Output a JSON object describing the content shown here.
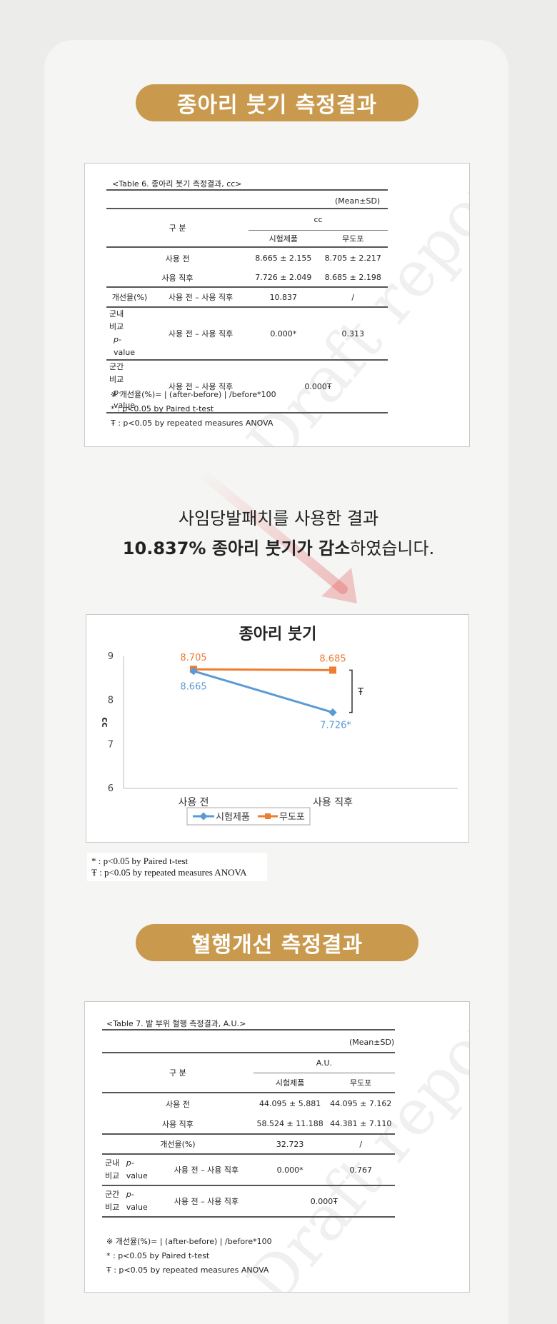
{
  "section1": {
    "title": "종아리 붓기 측정결과",
    "table": {
      "caption": "<Table 6. 종아리 붓기 측정결과, cc>",
      "unit_note": "(Mean±SD)",
      "group_header": "구 분",
      "unit_header": "cc",
      "col_test": "시험제품",
      "col_placebo": "무도포",
      "row_before": {
        "label": "사용 전",
        "test": "8.665  ±  2.155",
        "placebo": "8.705 ±  2.217"
      },
      "row_after": {
        "label": "사용 직후",
        "test": "7.726  ±  2.049",
        "placebo": "8.685 ±  2.198"
      },
      "row_improve": {
        "label": "개선율(%)",
        "sub": "사용 전 – 사용 직후",
        "test": "10.837",
        "placebo": "/"
      },
      "row_within": {
        "label1": "군내",
        "label2": "비교",
        "p1": "p-",
        "p2": "value",
        "sub": "사용 전 – 사용 직후",
        "test": "0.000*",
        "placebo": "0.313"
      },
      "row_between": {
        "label1": "군간",
        "label2": "비교",
        "p1": "p-",
        "p2": "value",
        "sub": "사용 전 – 사용 직후",
        "value": "0.000Ŧ"
      },
      "notes": [
        "※ 개선율(%)= | (after-before) | /before*100",
        "* : p<0.05 by Paired t-test",
        "Ŧ : p<0.05 by repeated measures ANOVA"
      ]
    },
    "watermark": "Draft report"
  },
  "statement": {
    "line1": "사임당발패치를 사용한 결과",
    "line2_bold": "10.837% 종아리 붓기가 감소",
    "line2_rest": "하였습니다."
  },
  "chart_data": {
    "type": "line",
    "title": "종아리 붓기",
    "categories": [
      "사용 전",
      "사용 직후"
    ],
    "series": [
      {
        "name": "시험제품",
        "values": [
          8.665,
          7.726
        ],
        "color": "#5b9bd5",
        "labels": [
          "8.665",
          "7.726*"
        ]
      },
      {
        "name": "무도포",
        "values": [
          8.705,
          8.685
        ],
        "color": "#ed7d31",
        "labels": [
          "8.705",
          "8.685"
        ]
      }
    ],
    "ylabel": "cc",
    "ylim": [
      6,
      9
    ],
    "yticks": [
      "6",
      "7",
      "8",
      "9"
    ],
    "bracket_label": "Ŧ",
    "legend_position": "bottom"
  },
  "chart_notes": [
    "* : p<0.05 by Paired t-test",
    "Ŧ : p<0.05 by repeated measures ANOVA"
  ],
  "section2": {
    "title": "혈행개선 측정결과",
    "table": {
      "caption": "<Table 7. 발 부위 혈행 측정결과, A.U.>",
      "unit_note": "(Mean±SD)",
      "group_header": "구 분",
      "unit_header": "A.U.",
      "col_test": "시험제품",
      "col_placebo": "무도포",
      "row_before": {
        "label": "사용 전",
        "test": "44.095  ±  5.881",
        "placebo": "44.095 ±  7.162"
      },
      "row_after": {
        "label": "사용 직후",
        "test": "58.524  ±  11.188",
        "placebo": "44.381 ±  7.110"
      },
      "row_improve": {
        "label": "개선율(%)",
        "test": "32.723",
        "placebo": "/"
      },
      "row_within": {
        "label1": "군내",
        "label2": "비교",
        "p1": "p-",
        "p2": "value",
        "sub": "사용 전 – 사용 직후",
        "test": "0.000*",
        "placebo": "0.767"
      },
      "row_between": {
        "label1": "군간",
        "label2": "비교",
        "p1": "p-",
        "p2": "value",
        "sub": "사용 전 – 사용 직후",
        "value": "0.000Ŧ"
      },
      "notes": [
        "※ 개선율(%)= | (after-before) | /before*100",
        "* : p<0.05 by Paired t-test",
        "Ŧ : p<0.05 by repeated measures ANOVA"
      ]
    },
    "watermark": "Draft report"
  },
  "colors": {
    "accent_gold": "#c99a4e",
    "test_blue": "#5b9bd5",
    "placebo_orange": "#ed7d31"
  }
}
